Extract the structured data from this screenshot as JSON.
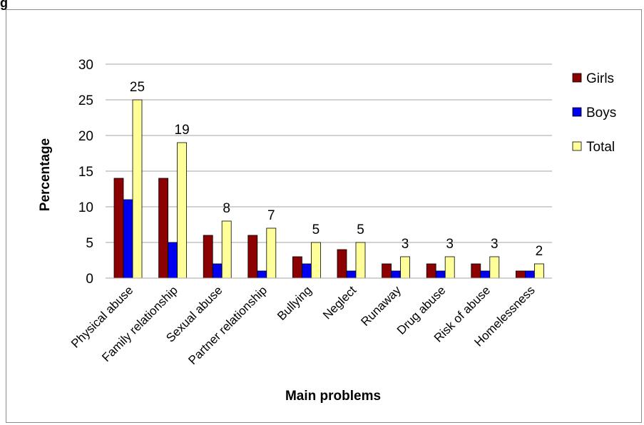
{
  "figure": {
    "heading": "g"
  },
  "chart_data": {
    "type": "bar",
    "title": "",
    "xlabel": "Main problems",
    "ylabel": "Percentage",
    "ylim": [
      0,
      30
    ],
    "yticks": [
      "0",
      "5",
      "10",
      "15",
      "20",
      "25",
      "30"
    ],
    "grid": true,
    "legend_position": "right",
    "categories": [
      "Physical abuse",
      "Family relationship",
      "Sexual abuse",
      "Partner relationship",
      "Bullying",
      "Neglect",
      "Runaway",
      "Drug abuse",
      "Risk of abuse",
      "Homelessness"
    ],
    "series": [
      {
        "name": "Girls",
        "color": "#8b0000",
        "values": [
          14,
          14,
          6,
          6,
          3,
          4,
          2,
          2,
          2,
          1
        ]
      },
      {
        "name": "Boys",
        "color": "#0000ee",
        "values": [
          11,
          5,
          2,
          1,
          2,
          1,
          1,
          1,
          1,
          1
        ]
      },
      {
        "name": "Total",
        "color": "#ffff99",
        "values": [
          25,
          19,
          8,
          7,
          5,
          5,
          3,
          3,
          3,
          2
        ]
      }
    ],
    "data_labels": {
      "series": "Total",
      "values": [
        "25",
        "19",
        "8",
        "7",
        "5",
        "5",
        "3",
        "3",
        "3",
        "2"
      ]
    }
  }
}
